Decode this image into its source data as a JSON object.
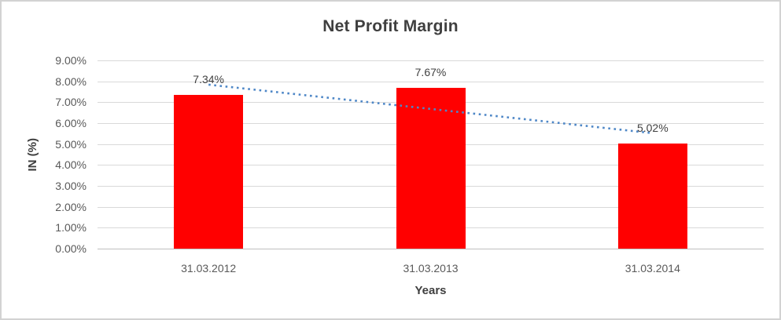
{
  "frame": {
    "background": "#ffffff",
    "border_color": "#d2d2d2"
  },
  "chart_data": {
    "type": "bar",
    "title": "Net Profit Margin",
    "categories": [
      "31.03.2012",
      "31.03.2013",
      "31.03.2014"
    ],
    "values": [
      7.34,
      7.67,
      5.02
    ],
    "data_labels": [
      "7.34%",
      "7.67%",
      "5.02%"
    ],
    "xlabel": "Years",
    "ylabel": "IN (%)",
    "ylim": [
      0,
      9
    ],
    "ytick_labels": [
      "0.00%",
      "1.00%",
      "2.00%",
      "3.00%",
      "4.00%",
      "5.00%",
      "6.00%",
      "7.00%",
      "8.00%",
      "9.00%"
    ],
    "grid": true,
    "legend": false,
    "bar_color": "#ff0000",
    "gridline_color": "#d9d9d9",
    "axis_line_color": "#bfbfbf",
    "tick_color": "#595959",
    "text_color": "#3f3f3f",
    "trendline": {
      "type": "linear",
      "line_style": "dotted",
      "color": "#4e87c7",
      "start_value": 7.84,
      "end_value": 5.52
    }
  }
}
